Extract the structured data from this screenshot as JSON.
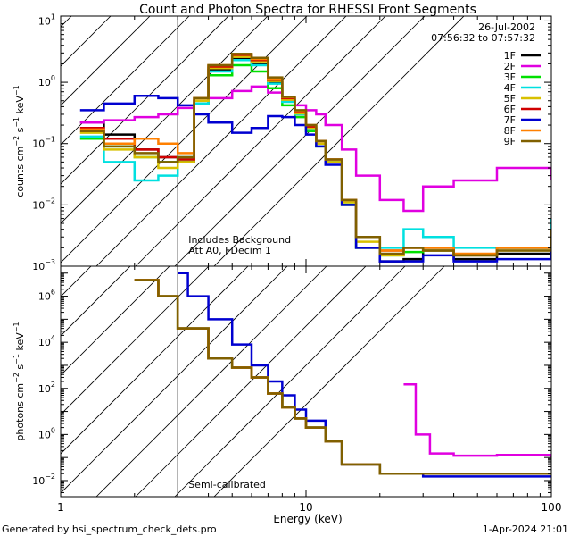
{
  "chart_data": {
    "type": "line",
    "title": "Count and Photon Spectra for RHESSI Front Segments",
    "date": "26-Jul-2002",
    "time_range": "07:56:32 to 07:57:32",
    "xlabel": "Energy (keV)",
    "xscale": "log",
    "xlim": [
      1,
      100
    ],
    "x_ticks": [
      1,
      10,
      100
    ],
    "x_tick_labels": [
      "1",
      "10",
      "100"
    ],
    "energy_threshold_keV": 3,
    "colors": {
      "1F": "#000000",
      "2F": "#e000e0",
      "3F": "#00e000",
      "4F": "#00e0e0",
      "5F": "#d8c000",
      "6F": "#d00000",
      "7F": "#0000d0",
      "8F": "#ff8000",
      "9F": "#806000"
    },
    "footer_left": "Generated by hsi_spectrum_check_dets.pro",
    "footer_right": "1-Apr-2024 21:01",
    "panels": [
      {
        "name": "count-spectra",
        "ylabel_prefix": "counts cm",
        "ylabel_mid": " s",
        "ylabel_end": " keV",
        "ylabel_exp": "−2",
        "ylabel_exp2": "−1",
        "ylabel_exp3": "−1",
        "ylim": [
          0.001,
          12
        ],
        "yscale": "log",
        "y_ticks": [
          0.001,
          0.01,
          0.1,
          1,
          10
        ],
        "y_tick_base": "10",
        "y_tick_exponents": [
          "−3",
          "−2",
          "−1",
          "0",
          "1"
        ],
        "annotations": [
          "Includes Background",
          "Att A0, FDecim 1"
        ],
        "legend": [
          "1F",
          "2F",
          "3F",
          "4F",
          "5F",
          "6F",
          "7F",
          "8F",
          "9F"
        ],
        "series": [
          {
            "name": "1F",
            "x": [
              1.2,
              1.5,
              2,
              2.5,
              3,
              3.5,
              4,
              5,
              6,
              7,
              8,
              9,
              10,
              11,
              12,
              14,
              16,
              20,
              25,
              30,
              40,
              60,
              100
            ],
            "values": [
              0.22,
              0.14,
              0.08,
              0.06,
              0.05,
              0.5,
              1.6,
              2.4,
              2.0,
              1.0,
              0.5,
              0.3,
              0.17,
              0.1,
              0.05,
              0.01,
              0.002,
              0.0012,
              0.0013,
              0.0018,
              0.0013,
              0.0016,
              0.003
            ]
          },
          {
            "name": "2F",
            "x": [
              1.2,
              1.5,
              2,
              2.5,
              3,
              3.5,
              4,
              5,
              6,
              7,
              8,
              9,
              10,
              11,
              12,
              14,
              16,
              20,
              25,
              30,
              40,
              60,
              100
            ],
            "values": [
              0.22,
              0.24,
              0.27,
              0.3,
              0.38,
              0.45,
              0.55,
              0.72,
              0.85,
              0.68,
              0.5,
              0.42,
              0.35,
              0.3,
              0.2,
              0.08,
              0.03,
              0.012,
              0.008,
              0.02,
              0.025,
              0.04,
              0.025
            ]
          },
          {
            "name": "3F",
            "x": [
              1.2,
              1.5,
              2,
              2.5,
              3,
              3.5,
              4,
              5,
              6,
              7,
              8,
              9,
              10,
              11,
              12,
              14,
              16,
              20,
              25,
              30,
              40,
              60,
              100
            ],
            "values": [
              0.12,
              0.09,
              0.06,
              0.05,
              0.055,
              0.45,
              1.3,
              1.9,
              1.5,
              0.8,
              0.42,
              0.27,
              0.16,
              0.09,
              0.05,
              0.01,
              0.002,
              0.0015,
              0.0017,
              0.002,
              0.0015,
              0.002,
              0.006
            ]
          },
          {
            "name": "4F",
            "x": [
              1.2,
              1.5,
              2,
              2.5,
              3,
              3.5,
              4,
              5,
              6,
              7,
              8,
              9,
              10,
              11,
              12,
              14,
              16,
              20,
              25,
              30,
              40,
              60,
              100
            ],
            "values": [
              0.13,
              0.05,
              0.025,
              0.03,
              0.06,
              0.45,
              1.5,
              2.3,
              1.9,
              0.95,
              0.48,
              0.3,
              0.17,
              0.1,
              0.05,
              0.011,
              0.003,
              0.002,
              0.004,
              0.003,
              0.002,
              0.002,
              0.006
            ]
          },
          {
            "name": "5F",
            "x": [
              1.2,
              1.5,
              2,
              2.5,
              3,
              3.5,
              4,
              5,
              6,
              7,
              8,
              9,
              10,
              11,
              12,
              14,
              16,
              20,
              25,
              30,
              40,
              60,
              100
            ],
            "values": [
              0.15,
              0.08,
              0.06,
              0.04,
              0.05,
              0.5,
              1.7,
              2.6,
              2.2,
              1.05,
              0.52,
              0.31,
              0.18,
              0.1,
              0.05,
              0.011,
              0.0025,
              0.0015,
              0.002,
              0.0018,
              0.0015,
              0.0018,
              0.004
            ]
          },
          {
            "name": "6F",
            "x": [
              1.2,
              1.5,
              2,
              2.5,
              3,
              3.5,
              4,
              5,
              6,
              7,
              8,
              9,
              10,
              11,
              12,
              14,
              16,
              20,
              25,
              30,
              40,
              60,
              100
            ],
            "values": [
              0.18,
              0.12,
              0.08,
              0.06,
              0.055,
              0.55,
              1.8,
              2.8,
              2.3,
              1.1,
              0.55,
              0.33,
              0.19,
              0.11,
              0.055,
              0.012,
              0.003,
              0.0018,
              0.002,
              0.002,
              0.0015,
              0.002,
              0.004
            ]
          },
          {
            "name": "7F",
            "x": [
              1.2,
              1.5,
              2,
              2.5,
              3,
              3.5,
              4,
              5,
              6,
              7,
              8,
              9,
              10,
              11,
              12,
              14,
              16,
              20,
              25,
              30,
              40,
              60,
              100
            ],
            "values": [
              0.35,
              0.45,
              0.6,
              0.55,
              0.42,
              0.3,
              0.22,
              0.15,
              0.18,
              0.28,
              0.27,
              0.2,
              0.14,
              0.09,
              0.045,
              0.01,
              0.002,
              0.0012,
              0.0012,
              0.0015,
              0.0012,
              0.0013,
              0.002
            ]
          },
          {
            "name": "8F",
            "x": [
              1.2,
              1.5,
              2,
              2.5,
              3,
              3.5,
              4,
              5,
              6,
              7,
              8,
              9,
              10,
              11,
              12,
              14,
              16,
              20,
              25,
              30,
              40,
              60,
              100
            ],
            "values": [
              0.17,
              0.1,
              0.12,
              0.1,
              0.07,
              0.55,
              1.9,
              2.9,
              2.4,
              1.15,
              0.57,
              0.34,
              0.2,
              0.11,
              0.055,
              0.012,
              0.003,
              0.0018,
              0.002,
              0.002,
              0.0016,
              0.002,
              0.004
            ]
          },
          {
            "name": "9F",
            "x": [
              1.2,
              1.5,
              2,
              2.5,
              3,
              3.5,
              4,
              5,
              6,
              7,
              8,
              9,
              10,
              11,
              12,
              14,
              16,
              20,
              25,
              30,
              40,
              60,
              100
            ],
            "values": [
              0.16,
              0.09,
              0.07,
              0.05,
              0.06,
              0.55,
              1.9,
              2.9,
              2.5,
              1.2,
              0.58,
              0.35,
              0.2,
              0.11,
              0.055,
              0.012,
              0.003,
              0.0016,
              0.002,
              0.0018,
              0.0015,
              0.0018,
              0.004
            ]
          }
        ]
      },
      {
        "name": "photon-spectra",
        "ylabel_prefix": "photons cm",
        "ylabel_mid": " s",
        "ylabel_end": " keV",
        "ylabel_exp": "−2",
        "ylabel_exp2": "−1",
        "ylabel_exp3": "−1",
        "ylim": [
          0.002,
          20000000
        ],
        "yscale": "log",
        "y_ticks": [
          0.01,
          1,
          100,
          10000,
          1000000
        ],
        "y_tick_base": "10",
        "y_tick_exponents": [
          "−2",
          "0",
          "2",
          "4",
          "6"
        ],
        "annotations": [
          "Semi-calibrated"
        ],
        "series": [
          {
            "name": "1F",
            "x": [
              2,
              2.5,
              3,
              4,
              5,
              6,
              7,
              8,
              9,
              10,
              12,
              14,
              20,
              30,
              50,
              100
            ],
            "values": [
              5000000,
              1000000,
              40000,
              2000,
              800,
              300,
              60,
              15,
              5,
              2,
              0.5,
              0.05,
              0.02,
              0.02,
              0.02,
              0.02
            ]
          },
          {
            "name": "2F",
            "x": [
              25,
              28,
              32,
              40,
              60,
              100
            ],
            "values": [
              150,
              1,
              0.15,
              0.12,
              0.13,
              0.1
            ]
          },
          {
            "name": "3F",
            "x": [
              2,
              2.5,
              3,
              4,
              5,
              6,
              7,
              8,
              9,
              10,
              12,
              14,
              20,
              30,
              50,
              100
            ],
            "values": [
              5000000,
              1000000,
              40000,
              2000,
              800,
              300,
              60,
              15,
              5,
              2,
              0.5,
              0.05,
              0.02,
              0.02,
              0.02,
              0.02
            ]
          },
          {
            "name": "4F",
            "x": [
              2,
              2.5,
              3,
              4,
              5,
              6,
              7,
              8,
              9,
              10,
              12,
              14,
              20,
              30,
              50,
              100
            ],
            "values": [
              5000000,
              1000000,
              40000,
              2000,
              800,
              300,
              60,
              15,
              5,
              2,
              0.5,
              0.05,
              0.02,
              0.02,
              0.02,
              0.02
            ]
          },
          {
            "name": "5F",
            "x": [
              2,
              2.5,
              3,
              4,
              5,
              6,
              7,
              8,
              9,
              10,
              12,
              14,
              20,
              30,
              50,
              100
            ],
            "values": [
              5000000,
              1000000,
              40000,
              2000,
              800,
              300,
              60,
              15,
              5,
              2,
              0.5,
              0.05,
              0.02,
              0.02,
              0.02,
              0.02
            ]
          },
          {
            "name": "6F",
            "x": [
              2,
              2.5,
              3,
              4,
              5,
              6,
              7,
              8,
              9,
              10,
              12,
              14,
              20,
              30,
              50,
              100
            ],
            "values": [
              5000000,
              1000000,
              40000,
              2000,
              800,
              300,
              60,
              15,
              5,
              2,
              0.5,
              0.05,
              0.02,
              0.02,
              0.02,
              0.02
            ]
          },
          {
            "name": "7F",
            "x": [
              3,
              3.3,
              4,
              5,
              6,
              7,
              8,
              9,
              10,
              12,
              14,
              20,
              30,
              50,
              100
            ],
            "values": [
              10000000,
              1000000,
              100000,
              8000,
              1000,
              200,
              50,
              12,
              4,
              0.5,
              0.05,
              0.02,
              0.015,
              0.015,
              0.015
            ]
          },
          {
            "name": "8F",
            "x": [
              2,
              2.5,
              3,
              4,
              5,
              6,
              7,
              8,
              9,
              10,
              12,
              14,
              20,
              30,
              50,
              100
            ],
            "values": [
              5000000,
              1000000,
              40000,
              2000,
              800,
              300,
              60,
              15,
              5,
              2,
              0.5,
              0.05,
              0.02,
              0.02,
              0.02,
              0.02
            ]
          },
          {
            "name": "9F",
            "x": [
              2,
              2.5,
              3,
              4,
              5,
              6,
              7,
              8,
              9,
              10,
              12,
              14,
              20,
              30,
              50,
              100
            ],
            "values": [
              5000000,
              1000000,
              40000,
              2000,
              800,
              300,
              60,
              15,
              5,
              2,
              0.5,
              0.05,
              0.02,
              0.02,
              0.02,
              0.02
            ]
          }
        ]
      }
    ]
  }
}
